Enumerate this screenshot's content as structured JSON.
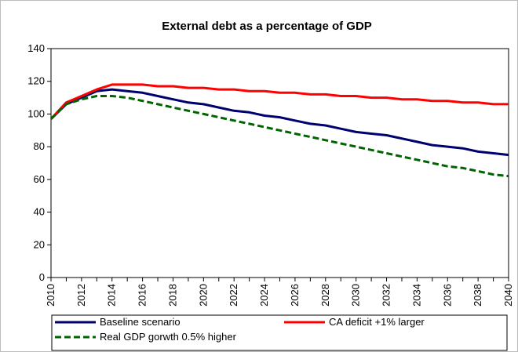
{
  "chart_data": {
    "type": "line",
    "title": "External debt as a percentage of GDP",
    "xlabel": "",
    "ylabel": "",
    "ylim": [
      0,
      140
    ],
    "yticks": [
      0,
      20,
      40,
      60,
      80,
      100,
      120,
      140
    ],
    "xlim": [
      2010,
      2040
    ],
    "xtick_labels": [
      "2010",
      "2012",
      "2014",
      "2016",
      "2018",
      "2020",
      "2022",
      "2024",
      "2026",
      "2028",
      "2030",
      "2032",
      "2034",
      "2036",
      "2038",
      "2040"
    ],
    "grid": false,
    "legend_position": "bottom",
    "x": [
      2010,
      2011,
      2012,
      2013,
      2014,
      2015,
      2016,
      2017,
      2018,
      2019,
      2020,
      2021,
      2022,
      2023,
      2024,
      2025,
      2026,
      2027,
      2028,
      2029,
      2030,
      2031,
      2032,
      2033,
      2034,
      2035,
      2036,
      2037,
      2038,
      2039,
      2040
    ],
    "series": [
      {
        "name": "Baseline scenario",
        "color": "#00006e",
        "dash": "solid",
        "values": [
          97,
          106,
          110,
          114,
          115,
          114,
          113,
          111,
          109,
          107,
          106,
          104,
          102,
          101,
          99,
          98,
          96,
          94,
          93,
          91,
          89,
          88,
          87,
          85,
          83,
          81,
          80,
          79,
          77,
          76,
          75
        ]
      },
      {
        "name": "CA deficit +1% larger",
        "color": "#ff0000",
        "dash": "solid",
        "values": [
          97,
          107,
          111,
          115,
          118,
          118,
          118,
          117,
          117,
          116,
          116,
          115,
          115,
          114,
          114,
          113,
          113,
          112,
          112,
          111,
          111,
          110,
          110,
          109,
          109,
          108,
          108,
          107,
          107,
          106,
          106
        ]
      },
      {
        "name": "Real GDP gorwth 0.5% higher",
        "color": "#006400",
        "dash": "dashed",
        "values": [
          97,
          106,
          109,
          111,
          111,
          110,
          108,
          106,
          104,
          102,
          100,
          98,
          96,
          94,
          92,
          90,
          88,
          86,
          84,
          82,
          80,
          78,
          76,
          74,
          72,
          70,
          68,
          67,
          65,
          63,
          62
        ]
      }
    ]
  }
}
